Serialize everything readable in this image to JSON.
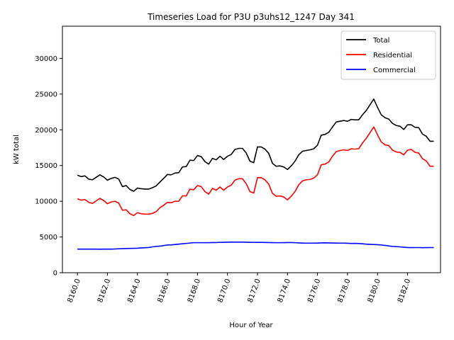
{
  "chart_data": {
    "type": "line",
    "title": "Timeseries Load for P3U p3uhs12_1247  Day 341",
    "xlabel": "Hour of Year",
    "ylabel": "kW total",
    "xlim": [
      8159.0,
      8184.2
    ],
    "ylim": [
      0,
      34500
    ],
    "x_ticks": [
      8160,
      8162,
      8164,
      8166,
      8168,
      8170,
      8172,
      8174,
      8176,
      8178,
      8180,
      8182
    ],
    "x_tick_labels": [
      "8160.0",
      "8162.0",
      "8164.0",
      "8166.0",
      "8168.0",
      "8170.0",
      "8172.0",
      "8174.0",
      "8176.0",
      "8178.0",
      "8180.0",
      "8182.0"
    ],
    "y_ticks": [
      0,
      5000,
      10000,
      15000,
      20000,
      25000,
      30000
    ],
    "y_tick_labels": [
      "0",
      "5000",
      "10000",
      "15000",
      "20000",
      "25000",
      "30000"
    ],
    "legend_position": "top-right",
    "x_start": 8160.0,
    "x_step": 0.25,
    "series": [
      {
        "name": "Total",
        "color": "#000000",
        "values": [
          13650,
          13450,
          13550,
          13100,
          13000,
          13350,
          13700,
          13400,
          12950,
          13200,
          13350,
          13100,
          12050,
          12200,
          11650,
          11400,
          11850,
          11750,
          11700,
          11700,
          11900,
          12150,
          12700,
          13200,
          13750,
          13700,
          13950,
          14000,
          14800,
          14850,
          15750,
          15700,
          16400,
          16250,
          15550,
          15200,
          16000,
          15800,
          16300,
          15850,
          16300,
          16550,
          17250,
          17400,
          17400,
          16750,
          15600,
          15400,
          17600,
          17600,
          17300,
          16700,
          15300,
          14900,
          14950,
          14800,
          14450,
          14950,
          15600,
          16500,
          17000,
          17100,
          17200,
          17350,
          17850,
          19250,
          19350,
          19650,
          20400,
          21100,
          21200,
          21300,
          21200,
          21450,
          21400,
          21400,
          22100,
          22700,
          23500,
          24300,
          23150,
          22100,
          21700,
          21500,
          20900,
          20600,
          20500,
          20050,
          20700,
          20700,
          20350,
          20300,
          19400,
          19100,
          18400,
          18400
        ]
      },
      {
        "name": "Residential",
        "color": "#ff0000",
        "values": [
          10350,
          10150,
          10250,
          9850,
          9700,
          10050,
          10400,
          10100,
          9650,
          9900,
          10000,
          9750,
          8750,
          8800,
          8250,
          8000,
          8400,
          8250,
          8200,
          8200,
          8300,
          8550,
          9100,
          9450,
          9850,
          9800,
          10000,
          10000,
          10750,
          10750,
          11700,
          11600,
          12200,
          12050,
          11350,
          11000,
          11800,
          11550,
          12000,
          11550,
          12000,
          12250,
          12950,
          13150,
          13150,
          12450,
          11350,
          11150,
          13300,
          13300,
          13000,
          12400,
          11100,
          10700,
          10750,
          10600,
          10200,
          10700,
          11350,
          12300,
          12850,
          13000,
          13050,
          13250,
          13700,
          15100,
          15200,
          15500,
          16300,
          16950,
          17100,
          17200,
          17100,
          17350,
          17300,
          17350,
          18150,
          18800,
          19600,
          20400,
          19300,
          18300,
          17900,
          17800,
          17150,
          16900,
          16850,
          16500,
          17150,
          17250,
          16850,
          16750,
          15950,
          15650,
          14900,
          14900
        ]
      },
      {
        "name": "Commercial",
        "color": "#0000ff",
        "values": [
          3300,
          3300,
          3300,
          3300,
          3300,
          3300,
          3290,
          3300,
          3300,
          3300,
          3320,
          3350,
          3360,
          3390,
          3400,
          3410,
          3430,
          3480,
          3500,
          3530,
          3620,
          3680,
          3720,
          3800,
          3880,
          3900,
          3950,
          4000,
          4050,
          4100,
          4150,
          4200,
          4200,
          4200,
          4200,
          4200,
          4220,
          4220,
          4250,
          4260,
          4270,
          4280,
          4280,
          4280,
          4280,
          4270,
          4260,
          4250,
          4240,
          4240,
          4230,
          4220,
          4210,
          4200,
          4200,
          4210,
          4220,
          4220,
          4200,
          4170,
          4150,
          4140,
          4140,
          4140,
          4150,
          4170,
          4180,
          4170,
          4160,
          4150,
          4140,
          4140,
          4120,
          4100,
          4110,
          4080,
          4050,
          4000,
          3970,
          3950,
          3920,
          3880,
          3820,
          3750,
          3680,
          3650,
          3620,
          3560,
          3530,
          3510,
          3520,
          3520,
          3500,
          3510,
          3520,
          3520
        ]
      }
    ]
  }
}
